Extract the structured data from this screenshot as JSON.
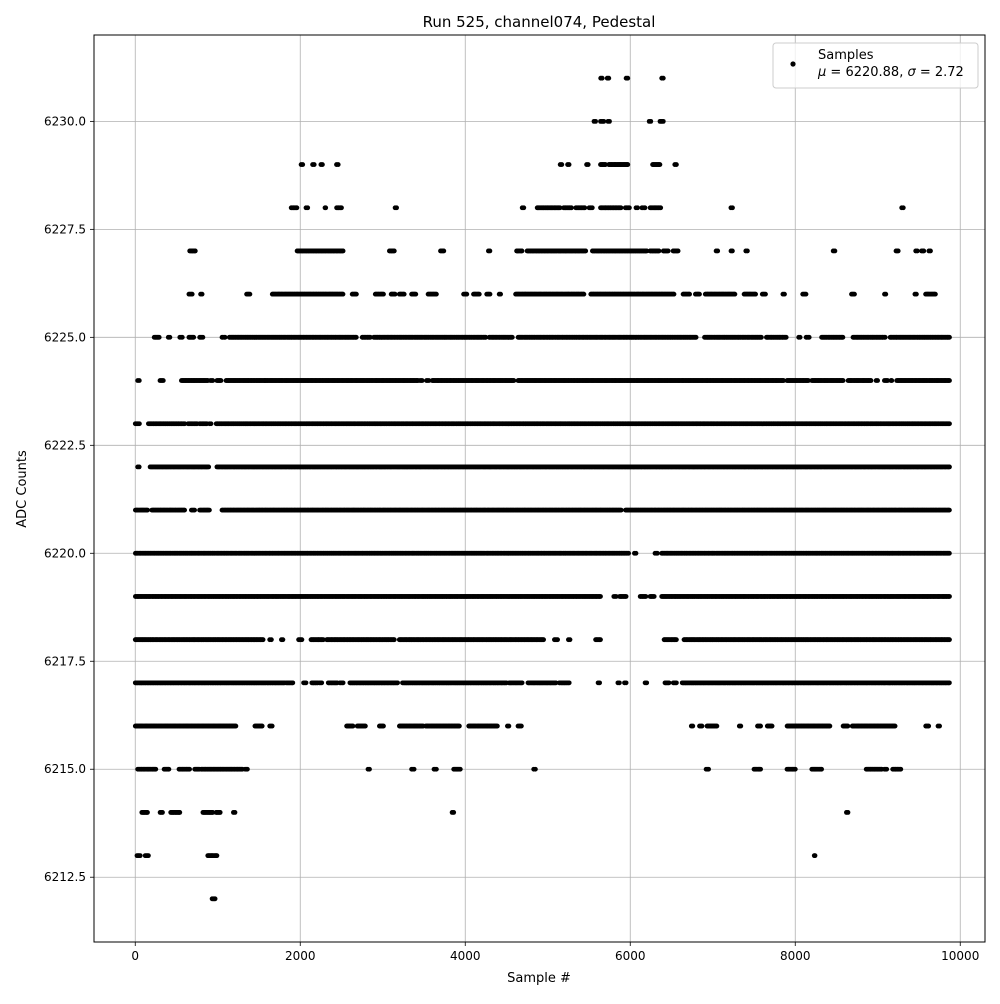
{
  "chart_data": {
    "type": "scatter",
    "title": "Run 525, channel074, Pedestal",
    "xlabel": "Sample #",
    "ylabel": "ADC Counts",
    "xlim": [
      -500,
      10300
    ],
    "ylim": [
      6211.0,
      6232.0
    ],
    "xticks": [
      0,
      2000,
      4000,
      6000,
      8000,
      10000
    ],
    "yticks": [
      6212.5,
      6215.0,
      6217.5,
      6220.0,
      6222.5,
      6225.0,
      6227.5,
      6230.0
    ],
    "grid": true,
    "legend_position": "top-right",
    "legend": {
      "marker_color": "#000000",
      "line1": "Samples",
      "line2_parts": [
        "μ",
        " = 6220.88, ",
        "σ",
        " = 2.72"
      ]
    },
    "series": [
      {
        "color": "#000000",
        "marker": "circle",
        "levels": [
          {
            "y": 6212,
            "x_ranges": [
              [
                930,
                970
              ]
            ]
          },
          {
            "y": 6213,
            "x_ranges": [
              [
                20,
                60
              ],
              [
                120,
                160
              ],
              [
                880,
                990
              ],
              [
                8230,
                8240
              ]
            ]
          },
          {
            "y": 6214,
            "x_ranges": [
              [
                80,
                150
              ],
              [
                300,
                330
              ],
              [
                430,
                540
              ],
              [
                820,
                940
              ],
              [
                980,
                1030
              ],
              [
                1190,
                1210
              ],
              [
                3840,
                3860
              ],
              [
                8620,
                8640
              ]
            ]
          },
          {
            "y": 6215,
            "x_ranges": [
              [
                30,
                250
              ],
              [
                350,
                410
              ],
              [
                530,
                660
              ],
              [
                720,
                780
              ],
              [
                800,
                1300
              ],
              [
                1330,
                1360
              ],
              [
                2820,
                2840
              ],
              [
                3350,
                3380
              ],
              [
                3620,
                3650
              ],
              [
                3860,
                3940
              ],
              [
                4830,
                4850
              ],
              [
                6920,
                6950
              ],
              [
                7500,
                7580
              ],
              [
                7900,
                8000
              ],
              [
                8200,
                8320
              ],
              [
                8860,
                9050
              ],
              [
                9080,
                9110
              ],
              [
                9180,
                9280
              ]
            ]
          },
          {
            "y": 6216,
            "x_ranges": [
              [
                0,
                1220
              ],
              [
                1450,
                1540
              ],
              [
                1630,
                1660
              ],
              [
                2560,
                2640
              ],
              [
                2690,
                2790
              ],
              [
                2960,
                3010
              ],
              [
                3200,
                3490
              ],
              [
                3520,
                3930
              ],
              [
                4040,
                4390
              ],
              [
                4510,
                4530
              ],
              [
                4640,
                4680
              ],
              [
                6740,
                6760
              ],
              [
                6840,
                6870
              ],
              [
                6930,
                7050
              ],
              [
                7320,
                7340
              ],
              [
                7540,
                7580
              ],
              [
                7660,
                7720
              ],
              [
                7900,
                8420
              ],
              [
                8580,
                8640
              ],
              [
                8690,
                9210
              ],
              [
                9580,
                9620
              ],
              [
                9730,
                9750
              ]
            ]
          },
          {
            "y": 6217,
            "x_ranges": [
              [
                0,
                1810
              ],
              [
                1830,
                1910
              ],
              [
                2040,
                2070
              ],
              [
                2140,
                2210
              ],
              [
                2230,
                2260
              ],
              [
                2340,
                2450
              ],
              [
                2480,
                2520
              ],
              [
                2600,
                3180
              ],
              [
                3240,
                4500
              ],
              [
                4530,
                4690
              ],
              [
                4760,
                5100
              ],
              [
                5140,
                5260
              ],
              [
                5610,
                5630
              ],
              [
                5850,
                5870
              ],
              [
                5930,
                5950
              ],
              [
                6180,
                6200
              ],
              [
                6420,
                6470
              ],
              [
                6520,
                6560
              ],
              [
                6630,
                9870
              ]
            ]
          },
          {
            "y": 6218,
            "x_ranges": [
              [
                0,
                1550
              ],
              [
                1630,
                1650
              ],
              [
                1770,
                1790
              ],
              [
                1980,
                2020
              ],
              [
                2130,
                2280
              ],
              [
                2320,
                3140
              ],
              [
                3200,
                4950
              ],
              [
                5080,
                5120
              ],
              [
                5250,
                5270
              ],
              [
                5580,
                5640
              ],
              [
                6410,
                6560
              ],
              [
                6650,
                9870
              ]
            ]
          },
          {
            "y": 6219,
            "x_ranges": [
              [
                0,
                5640
              ],
              [
                5800,
                5830
              ],
              [
                5870,
                5950
              ],
              [
                6120,
                6190
              ],
              [
                6240,
                6290
              ],
              [
                6380,
                9870
              ]
            ]
          },
          {
            "y": 6220,
            "x_ranges": [
              [
                0,
                5980
              ],
              [
                6050,
                6070
              ],
              [
                6300,
                6330
              ],
              [
                6380,
                9870
              ]
            ]
          },
          {
            "y": 6221,
            "x_ranges": [
              [
                0,
                150
              ],
              [
                200,
                600
              ],
              [
                680,
                720
              ],
              [
                780,
                900
              ],
              [
                1050,
                5890
              ],
              [
                5940,
                9870
              ]
            ]
          },
          {
            "y": 6222,
            "x_ranges": [
              [
                30,
                50
              ],
              [
                180,
                890
              ],
              [
                990,
                9870
              ]
            ]
          },
          {
            "y": 6223,
            "x_ranges": [
              [
                0,
                50
              ],
              [
                160,
                600
              ],
              [
                640,
                750
              ],
              [
                780,
                870
              ],
              [
                900,
                920
              ],
              [
                980,
                9870
              ]
            ]
          },
          {
            "y": 6224,
            "x_ranges": [
              [
                30,
                50
              ],
              [
                300,
                340
              ],
              [
                560,
                880
              ],
              [
                910,
                940
              ],
              [
                990,
                1040
              ],
              [
                1100,
                1570
              ],
              [
                1570,
                3430
              ],
              [
                3450,
                3480
              ],
              [
                3530,
                3560
              ],
              [
                3600,
                4590
              ],
              [
                4640,
                7860
              ],
              [
                7900,
                8160
              ],
              [
                8200,
                8580
              ],
              [
                8640,
                8920
              ],
              [
                8980,
                9000
              ],
              [
                9080,
                9120
              ],
              [
                9160,
                9170
              ],
              [
                9230,
                9870
              ]
            ]
          },
          {
            "y": 6225,
            "x_ranges": [
              [
                230,
                290
              ],
              [
                400,
                420
              ],
              [
                540,
                570
              ],
              [
                650,
                710
              ],
              [
                780,
                820
              ],
              [
                1050,
                1090
              ],
              [
                1140,
                2680
              ],
              [
                2750,
                2850
              ],
              [
                2890,
                4250
              ],
              [
                4290,
                4570
              ],
              [
                4640,
                6800
              ],
              [
                6900,
                7590
              ],
              [
                7650,
                7890
              ],
              [
                8040,
                8060
              ],
              [
                8130,
                8170
              ],
              [
                8320,
                8580
              ],
              [
                8700,
                9090
              ],
              [
                9150,
                9870
              ]
            ]
          },
          {
            "y": 6226,
            "x_ranges": [
              [
                650,
                690
              ],
              [
                790,
                810
              ],
              [
                1350,
                1390
              ],
              [
                1660,
                2520
              ],
              [
                2630,
                2680
              ],
              [
                2910,
                3010
              ],
              [
                3100,
                3150
              ],
              [
                3200,
                3260
              ],
              [
                3350,
                3400
              ],
              [
                3550,
                3650
              ],
              [
                3980,
                4020
              ],
              [
                4100,
                4170
              ],
              [
                4260,
                4300
              ],
              [
                4410,
                4430
              ],
              [
                4610,
                5440
              ],
              [
                5520,
                6530
              ],
              [
                6640,
                6720
              ],
              [
                6790,
                6840
              ],
              [
                6910,
                7270
              ],
              [
                7380,
                7520
              ],
              [
                7600,
                7640
              ],
              [
                7850,
                7870
              ],
              [
                8090,
                8130
              ],
              [
                8680,
                8720
              ],
              [
                9080,
                9100
              ],
              [
                9450,
                9470
              ],
              [
                9580,
                9700
              ]
            ]
          },
          {
            "y": 6227,
            "x_ranges": [
              [
                660,
                730
              ],
              [
                1960,
                2520
              ],
              [
                3080,
                3140
              ],
              [
                3700,
                3740
              ],
              [
                4280,
                4300
              ],
              [
                4620,
                4690
              ],
              [
                4750,
                5460
              ],
              [
                5540,
                6200
              ],
              [
                6240,
                6350
              ],
              [
                6400,
                6460
              ],
              [
                6520,
                6580
              ],
              [
                7040,
                7060
              ],
              [
                7220,
                7240
              ],
              [
                7400,
                7420
              ],
              [
                8460,
                8480
              ],
              [
                9220,
                9250
              ],
              [
                9460,
                9480
              ],
              [
                9530,
                9560
              ],
              [
                9620,
                9640
              ]
            ]
          },
          {
            "y": 6228,
            "x_ranges": [
              [
                1890,
                1960
              ],
              [
                2070,
                2090
              ],
              [
                2300,
                2310
              ],
              [
                2440,
                2500
              ],
              [
                3150,
                3170
              ],
              [
                4690,
                4710
              ],
              [
                4870,
                5150
              ],
              [
                5190,
                5290
              ],
              [
                5340,
                5450
              ],
              [
                5500,
                5540
              ],
              [
                5640,
                5890
              ],
              [
                5940,
                5990
              ],
              [
                6070,
                6090
              ],
              [
                6140,
                6180
              ],
              [
                6240,
                6370
              ],
              [
                7220,
                7240
              ],
              [
                9290,
                9310
              ]
            ]
          },
          {
            "y": 6229,
            "x_ranges": [
              [
                2010,
                2030
              ],
              [
                2150,
                2170
              ],
              [
                2250,
                2270
              ],
              [
                2440,
                2460
              ],
              [
                5150,
                5170
              ],
              [
                5240,
                5260
              ],
              [
                5470,
                5490
              ],
              [
                5640,
                5700
              ],
              [
                5740,
                5970
              ],
              [
                6270,
                6360
              ],
              [
                6540,
                6560
              ]
            ]
          },
          {
            "y": 6230,
            "x_ranges": [
              [
                5560,
                5580
              ],
              [
                5640,
                5680
              ],
              [
                5730,
                5750
              ],
              [
                6230,
                6250
              ],
              [
                6360,
                6400
              ]
            ]
          },
          {
            "y": 6231,
            "x_ranges": [
              [
                5640,
                5660
              ],
              [
                5720,
                5740
              ],
              [
                5950,
                5970
              ],
              [
                6380,
                6400
              ]
            ]
          }
        ]
      }
    ]
  }
}
